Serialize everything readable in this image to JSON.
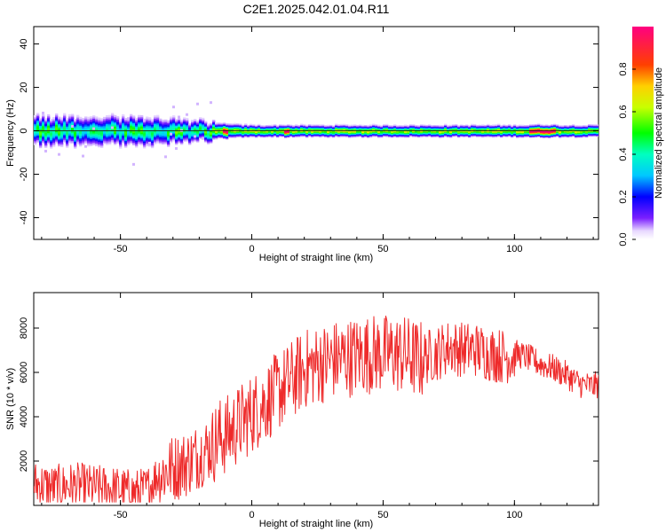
{
  "title": "C2E1.2025.042.01.04.R11",
  "colorbar": {
    "label": "Normalized spectral amplitude",
    "ticks": [
      "0.0",
      "0.2",
      "0.4",
      "0.6",
      "0.8"
    ],
    "tick_values": [
      0.0,
      0.2,
      0.4,
      0.6,
      0.8
    ],
    "range": [
      0,
      1
    ]
  },
  "chart_data": [
    {
      "type": "heatmap",
      "title": "",
      "xlabel": "Height of straight line (km)",
      "ylabel": "Frequency (Hz)",
      "xlim": [
        -83,
        132
      ],
      "ylim": [
        -50,
        48
      ],
      "x_ticks": [
        -50,
        0,
        50,
        100
      ],
      "y_ticks": [
        -40,
        -20,
        0,
        20,
        40
      ],
      "grid": false,
      "band_center_hz": 0,
      "band_halfwidth_hz": [
        {
          "x": -80,
          "halfwidth": 6
        },
        {
          "x": -40,
          "halfwidth": 6
        },
        {
          "x": -15,
          "halfwidth": 4
        },
        {
          "x": 0,
          "halfwidth": 3
        },
        {
          "x": 130,
          "halfwidth": 3
        }
      ],
      "peak_segments": [
        {
          "x_start": -11,
          "x_end": -9,
          "amplitude": 1.0
        },
        {
          "x_start": 12,
          "x_end": 14,
          "amplitude": 1.0
        },
        {
          "x_start": 105,
          "x_end": 115,
          "amplitude": 1.0
        }
      ]
    },
    {
      "type": "line",
      "title": "",
      "xlabel": "Height of straight line (km)",
      "ylabel": "SNR (10 * v/v)",
      "xlim": [
        -83,
        132
      ],
      "ylim": [
        0,
        9600
      ],
      "x_ticks": [
        -50,
        0,
        50,
        100
      ],
      "y_ticks": [
        2000,
        4000,
        6000,
        8000
      ],
      "grid": false,
      "series": [
        {
          "color": "#ee2a2a",
          "x": [
            -83,
            -75,
            -70,
            -65,
            -60,
            -55,
            -50,
            -45,
            -40,
            -35,
            -30,
            -25,
            -20,
            -15,
            -13,
            -10,
            -5,
            0,
            5,
            10,
            15,
            20,
            25,
            30,
            35,
            40,
            45,
            50,
            55,
            60,
            62,
            65,
            70,
            75,
            80,
            85,
            90,
            95,
            100,
            105,
            110,
            115,
            120,
            125,
            130,
            132
          ],
          "y": [
            1200,
            1000,
            1100,
            1100,
            1000,
            1000,
            900,
            800,
            900,
            1700,
            2000,
            2200,
            2600,
            3000,
            3400,
            3500,
            4000,
            4500,
            5000,
            5500,
            6000,
            6500,
            6700,
            6900,
            7000,
            7100,
            7200,
            7200,
            7200,
            7100,
            7000,
            6900,
            7100,
            7400,
            7300,
            7300,
            7100,
            7000,
            7000,
            6800,
            6500,
            6300,
            6000,
            5600,
            5500,
            5600
          ]
        }
      ]
    }
  ]
}
